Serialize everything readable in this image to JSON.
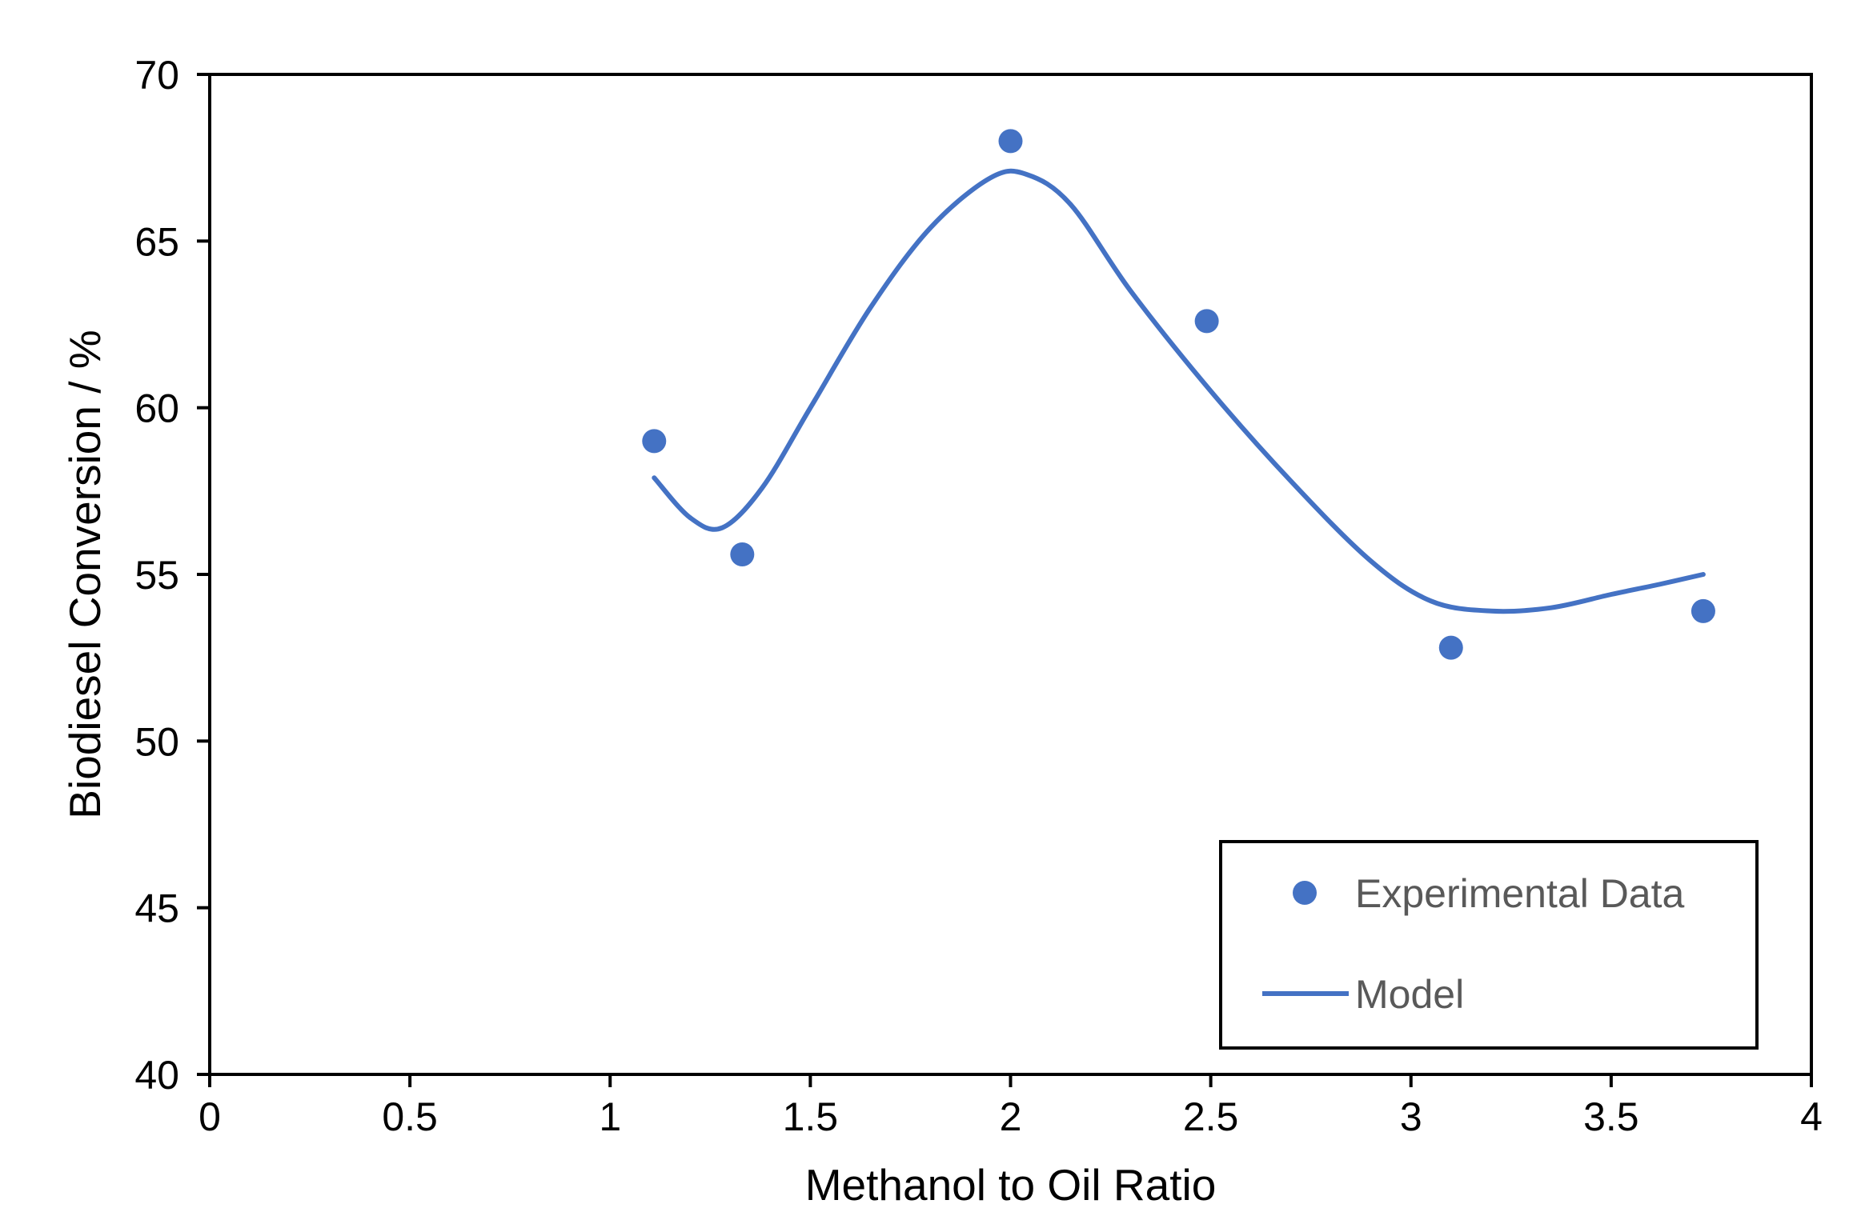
{
  "chart_data": {
    "type": "scatter",
    "title": "",
    "xlabel": "Methanol to Oil Ratio",
    "ylabel": "Biodiesel Conversion / %",
    "xlim": [
      0,
      4
    ],
    "ylim": [
      40,
      70
    ],
    "x_ticks": [
      0,
      0.5,
      1,
      1.5,
      2,
      2.5,
      3,
      3.5,
      4
    ],
    "x_tick_labels": [
      "0",
      "0.5",
      "1",
      "1.5",
      "2",
      "2.5",
      "3",
      "3.5",
      "4"
    ],
    "y_ticks": [
      40,
      45,
      50,
      55,
      60,
      65,
      70
    ],
    "y_tick_labels": [
      "40",
      "45",
      "50",
      "55",
      "60",
      "65",
      "70"
    ],
    "grid": false,
    "legend_position": "bottom-right",
    "series": [
      {
        "name": "Experimental Data",
        "kind": "markers",
        "color": "#4472C4",
        "x": [
          1.11,
          1.33,
          2.0,
          2.49,
          3.1,
          3.73
        ],
        "y": [
          59.0,
          55.6,
          68.0,
          62.6,
          52.8,
          53.9
        ]
      },
      {
        "name": "Model",
        "kind": "line",
        "color": "#4472C4",
        "x": [
          1.11,
          1.2,
          1.28,
          1.38,
          1.5,
          1.65,
          1.8,
          1.95,
          2.04,
          2.15,
          2.3,
          2.5,
          2.7,
          2.9,
          3.05,
          3.2,
          3.35,
          3.5,
          3.62,
          3.73
        ],
        "y": [
          57.9,
          56.7,
          56.4,
          57.6,
          60.0,
          63.0,
          65.4,
          66.9,
          67.0,
          66.1,
          63.5,
          60.5,
          57.8,
          55.4,
          54.2,
          53.9,
          54.0,
          54.4,
          54.7,
          55.0
        ]
      }
    ]
  }
}
